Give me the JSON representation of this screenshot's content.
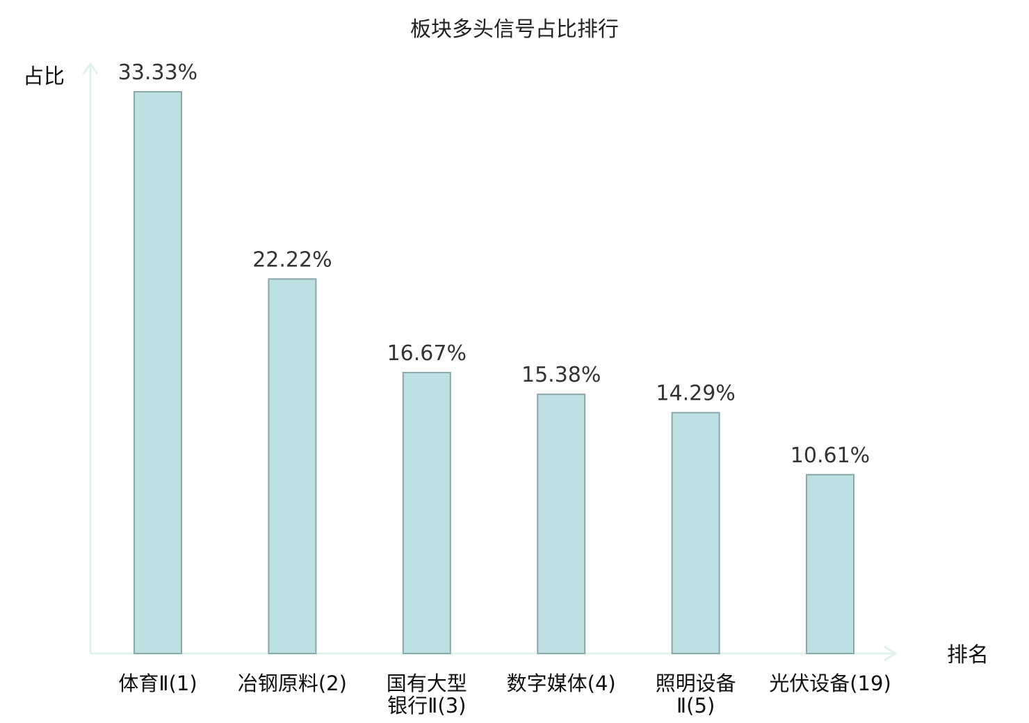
{
  "chart_data": {
    "type": "bar",
    "title": "板块多头信号占比排行",
    "xlabel": "排名",
    "ylabel": "占比",
    "ylim": [
      0,
      34.8
    ],
    "grid": false,
    "categories": [
      {
        "lines": [
          "体育Ⅱ(1)"
        ],
        "highlight": false
      },
      {
        "lines": [
          "冶钢原料(2)"
        ],
        "highlight": false
      },
      {
        "lines": [
          "国有大型",
          "银行Ⅱ(3)"
        ],
        "highlight": false
      },
      {
        "lines": [
          "数字媒体(4)"
        ],
        "highlight": false
      },
      {
        "lines": [
          "照明设备",
          "Ⅱ(5)"
        ],
        "highlight": false
      },
      {
        "lines": [
          "光伏设备(19)"
        ],
        "highlight": true
      }
    ],
    "values": [
      33.33,
      22.22,
      16.67,
      15.38,
      14.29,
      10.61
    ],
    "value_labels": [
      "33.33%",
      "22.22%",
      "16.67%",
      "15.38%",
      "14.29%",
      "10.61%"
    ],
    "colors": {
      "bar_fill": "#bde0e3",
      "bar_stroke": "#8aa7aa",
      "axis": "#e0f1ee",
      "highlight_text": "#dd1111",
      "normal_text": "#111111"
    }
  }
}
